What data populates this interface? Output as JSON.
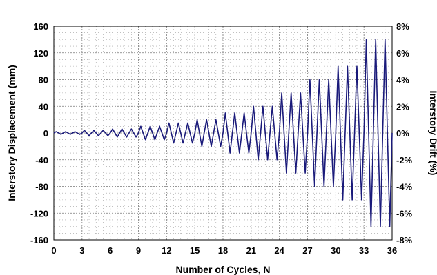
{
  "chart_data": {
    "type": "line",
    "title": "",
    "xlabel": "Number of Cycles, N",
    "ylabel": "Interstory Displacement (mm)",
    "y2label": "Interstory Drift (%)",
    "xlim": [
      0,
      36
    ],
    "ylim": [
      -160,
      160
    ],
    "y2lim": [
      -8,
      8
    ],
    "xticks": [
      0,
      3,
      6,
      9,
      12,
      15,
      18,
      21,
      24,
      27,
      30,
      33,
      36
    ],
    "yticks": [
      160,
      120,
      80,
      40,
      0,
      -40,
      -80,
      -120,
      -160
    ],
    "y2ticks": [
      "8%",
      "6%",
      "4%",
      "2%",
      "0%",
      "-2%",
      "-4%",
      "-6%",
      "-8%"
    ],
    "grid": true,
    "line_color": "#1a1a7a",
    "series": [
      {
        "name": "",
        "peak_amplitudes": [
          2,
          2,
          2,
          4,
          4,
          4,
          6,
          6,
          6,
          10,
          10,
          10,
          15,
          15,
          15,
          20,
          20,
          20,
          30,
          30,
          30,
          40,
          40,
          40,
          60,
          60,
          60,
          80,
          80,
          80,
          100,
          100,
          100,
          140,
          140,
          140
        ]
      }
    ]
  }
}
